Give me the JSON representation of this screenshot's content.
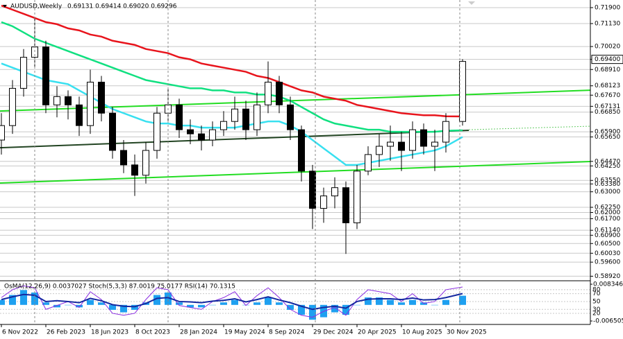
{
  "chart_data": {
    "type": "candlestick",
    "symbol": "AUDUSD,Weekly",
    "quote": "0.69131 0.69414 0.69020 0.69296",
    "candle_color": "#000000",
    "x": [
      0,
      4,
      8,
      12,
      16,
      20,
      24,
      28,
      32,
      36,
      40,
      44,
      48,
      52,
      56,
      60,
      64,
      68,
      72,
      76,
      80,
      84,
      88,
      92,
      96,
      100,
      104,
      108,
      112,
      116,
      120,
      124,
      128,
      132,
      136,
      140,
      144,
      148,
      152,
      156,
      160,
      166
    ],
    "open": [
      0.655,
      0.662,
      0.68,
      0.695,
      0.7,
      0.672,
      0.676,
      0.672,
      0.662,
      0.683,
      0.668,
      0.65,
      0.643,
      0.638,
      0.65,
      0.668,
      0.672,
      0.66,
      0.658,
      0.655,
      0.66,
      0.664,
      0.67,
      0.66,
      0.672,
      0.683,
      0.672,
      0.66,
      0.64,
      0.622,
      0.628,
      0.632,
      0.615,
      0.64,
      0.648,
      0.652,
      0.654,
      0.65,
      0.66,
      0.652,
      0.654,
      0.664
    ],
    "high": [
      0.668,
      0.684,
      0.699,
      0.714,
      0.703,
      0.681,
      0.679,
      0.676,
      0.689,
      0.686,
      0.671,
      0.655,
      0.648,
      0.654,
      0.671,
      0.68,
      0.675,
      0.665,
      0.662,
      0.664,
      0.669,
      0.676,
      0.674,
      0.678,
      0.693,
      0.686,
      0.676,
      0.662,
      0.643,
      0.632,
      0.637,
      0.635,
      0.643,
      0.652,
      0.658,
      0.662,
      0.659,
      0.664,
      0.663,
      0.66,
      0.668,
      0.6941
    ],
    "low": [
      0.648,
      0.658,
      0.676,
      0.69,
      0.668,
      0.666,
      0.665,
      0.657,
      0.658,
      0.664,
      0.646,
      0.639,
      0.628,
      0.634,
      0.646,
      0.664,
      0.656,
      0.653,
      0.65,
      0.652,
      0.657,
      0.66,
      0.655,
      0.657,
      0.668,
      0.668,
      0.655,
      0.635,
      0.612,
      0.615,
      0.622,
      0.6,
      0.612,
      0.638,
      0.642,
      0.645,
      0.64,
      0.646,
      0.648,
      0.64,
      0.649,
      0.662
    ],
    "close": [
      0.662,
      0.68,
      0.695,
      0.7,
      0.672,
      0.676,
      0.672,
      0.662,
      0.683,
      0.668,
      0.65,
      0.643,
      0.638,
      0.65,
      0.668,
      0.672,
      0.66,
      0.658,
      0.655,
      0.66,
      0.664,
      0.67,
      0.66,
      0.672,
      0.683,
      0.672,
      0.66,
      0.64,
      0.622,
      0.628,
      0.632,
      0.615,
      0.64,
      0.648,
      0.652,
      0.654,
      0.65,
      0.66,
      0.652,
      0.654,
      0.664,
      0.693
    ],
    "series": [
      {
        "color": "#e8141c",
        "values": [
          0.72,
          0.718,
          0.716,
          0.714,
          0.712,
          0.711,
          0.709,
          0.708,
          0.706,
          0.705,
          0.703,
          0.702,
          0.701,
          0.699,
          0.698,
          0.697,
          0.695,
          0.694,
          0.692,
          0.691,
          0.69,
          0.689,
          0.688,
          0.686,
          0.685,
          0.683,
          0.681,
          0.679,
          0.678,
          0.676,
          0.675,
          0.674,
          0.672,
          0.671,
          0.67,
          0.669,
          0.668,
          0.6675,
          0.667,
          0.667,
          0.6665,
          0.6664
        ]
      },
      {
        "color": "#10e080",
        "values": [
          0.712,
          0.71,
          0.707,
          0.704,
          0.702,
          0.7,
          0.698,
          0.696,
          0.694,
          0.692,
          0.69,
          0.688,
          0.686,
          0.684,
          0.683,
          0.682,
          0.681,
          0.68,
          0.68,
          0.679,
          0.679,
          0.678,
          0.678,
          0.677,
          0.677,
          0.676,
          0.674,
          0.671,
          0.668,
          0.665,
          0.663,
          0.662,
          0.661,
          0.66,
          0.66,
          0.659,
          0.659,
          0.659,
          0.659,
          0.659,
          0.6595,
          0.6597
        ]
      },
      {
        "color": "#38e0f0",
        "values": [
          0.692,
          0.69,
          0.688,
          0.686,
          0.684,
          0.683,
          0.682,
          0.679,
          0.676,
          0.673,
          0.67,
          0.668,
          0.666,
          0.664,
          0.663,
          0.663,
          0.662,
          0.662,
          0.661,
          0.661,
          0.661,
          0.661,
          0.662,
          0.663,
          0.664,
          0.664,
          0.662,
          0.659,
          0.655,
          0.651,
          0.647,
          0.643,
          0.643,
          0.644,
          0.645,
          0.646,
          0.647,
          0.648,
          0.649,
          0.65,
          0.652,
          0.6565
        ]
      }
    ],
    "trendlines": [
      {
        "color": "#22dd22",
        "x": [
          -0.5,
          212
        ],
        "y": [
          0.63422,
          0.64462
        ]
      },
      {
        "color": "#22dd22",
        "x": [
          -0.5,
          212
        ],
        "y": [
          0.66904,
          0.67909
        ]
      },
      {
        "color": "#224422",
        "x": [
          -0.5,
          168.25
        ],
        "y": [
          0.65128,
          0.6597
        ]
      },
      {
        "color": "#66cc66",
        "dashed": true,
        "x": [
          168.25,
          212
        ],
        "y": [
          0.66,
          0.6617
        ]
      }
    ],
    "xlim": [
      -0.5,
      212
    ],
    "ylim": [
      0.587,
      0.72269
    ],
    "xticks": [
      {
        "value": 0,
        "label": "6 Nov 2022"
      },
      {
        "value": 16,
        "label": "26 Feb 2023"
      },
      {
        "value": 32,
        "label": "18 Jun 2023"
      },
      {
        "value": 48,
        "label": "8 Oct 2023"
      },
      {
        "value": 64,
        "label": "28 Jan 2024"
      },
      {
        "value": 80,
        "label": "19 May 2024"
      },
      {
        "value": 96,
        "label": "8 Sep 2024"
      },
      {
        "value": 112,
        "label": "29 Dec 2024"
      },
      {
        "value": 128,
        "label": "20 Apr 2025"
      },
      {
        "value": 144,
        "label": "10 Aug 2025"
      },
      {
        "value": 160,
        "label": "30 Nov 2025"
      }
    ],
    "yticks": [
      {
        "value": 0.719,
        "label": "0.71900"
      },
      {
        "value": 0.7113,
        "label": "0.71130"
      },
      {
        "value": 0.7002,
        "label": "0.70020"
      },
      {
        "value": 0.694,
        "label": "0.69400",
        "boxed": true
      },
      {
        "value": 0.6891,
        "label": "0.68910"
      },
      {
        "value": 0.68123,
        "label": "0.68123"
      },
      {
        "value": 0.6767,
        "label": "0.67670"
      },
      {
        "value": 0.67131,
        "label": "0.67131"
      },
      {
        "value": 0.6685,
        "label": "0.66850"
      },
      {
        "value": 0.659,
        "label": "0.65900"
      },
      {
        "value": 0.6565,
        "label": "0.65650"
      },
      {
        "value": 0.6447,
        "label": "0.64470"
      },
      {
        "value": 0.6425,
        "label": "0.64250"
      },
      {
        "value": 0.6355,
        "label": "0.63550"
      },
      {
        "value": 0.6338,
        "label": "0.63380"
      },
      {
        "value": 0.63,
        "label": "0.63000"
      },
      {
        "value": 0.6225,
        "label": "0.62250"
      },
      {
        "value": 0.62,
        "label": "0.62000"
      },
      {
        "value": 0.617,
        "label": "0.61700"
      },
      {
        "value": 0.6114,
        "label": "0.61140"
      },
      {
        "value": 0.609,
        "label": "0.60900"
      },
      {
        "value": 0.605,
        "label": "0.60500"
      },
      {
        "value": 0.6003,
        "label": "0.60030"
      },
      {
        "value": 0.596,
        "label": "0.59600"
      },
      {
        "value": 0.5892,
        "label": "0.58920"
      }
    ],
    "grid": true,
    "indicator": {
      "label": "OsMA(12,26,9) 0.0037027 Stoch(5,3,3) 87.0019 75.0177 RSI(14) 70.1315",
      "hist_color": "#1ea0f0",
      "hist": [
        0.002,
        0.004,
        0.006,
        0.005,
        0.001,
        -0.001,
        0,
        -0.001,
        0.002,
        0.001,
        -0.002,
        -0.003,
        -0.002,
        0.001,
        0.004,
        0.005,
        0.001,
        -0.001,
        -0.001,
        0,
        0.001,
        0.002,
        0,
        0.001,
        0.003,
        0.001,
        -0.002,
        -0.004,
        -0.006,
        -0.005,
        -0.003,
        -0.004,
        0,
        0.003,
        0.003,
        0.002,
        0.001,
        0.002,
        0.001,
        0,
        0.002,
        0.0037027
      ],
      "hist_ylim": [
        -0.0079,
        0.00975
      ],
      "hist_ticks": [
        0.0083463,
        -0.0065054
      ],
      "stoch_color": "#8a2be2",
      "stoch": [
        60,
        80,
        90,
        85,
        30,
        40,
        50,
        35,
        75,
        55,
        20,
        15,
        20,
        55,
        85,
        80,
        40,
        35,
        30,
        50,
        60,
        75,
        40,
        65,
        85,
        60,
        30,
        15,
        10,
        25,
        35,
        15,
        55,
        80,
        75,
        70,
        50,
        70,
        45,
        50,
        80,
        87.0019
      ],
      "rsi_color": "#1428a0",
      "rsi": [
        55,
        62,
        68,
        66,
        50,
        52,
        50,
        47,
        58,
        52,
        42,
        38,
        37,
        45,
        58,
        60,
        50,
        49,
        47,
        51,
        53,
        57,
        49,
        55,
        62,
        54,
        47,
        38,
        30,
        35,
        38,
        33,
        50,
        56,
        57,
        57,
        55,
        59,
        54,
        55,
        60,
        70.1315
      ],
      "osc_ylim": [
        -8.3,
        102.8
      ],
      "osc_ticks": [
        80,
        70,
        50,
        30,
        20
      ]
    }
  }
}
